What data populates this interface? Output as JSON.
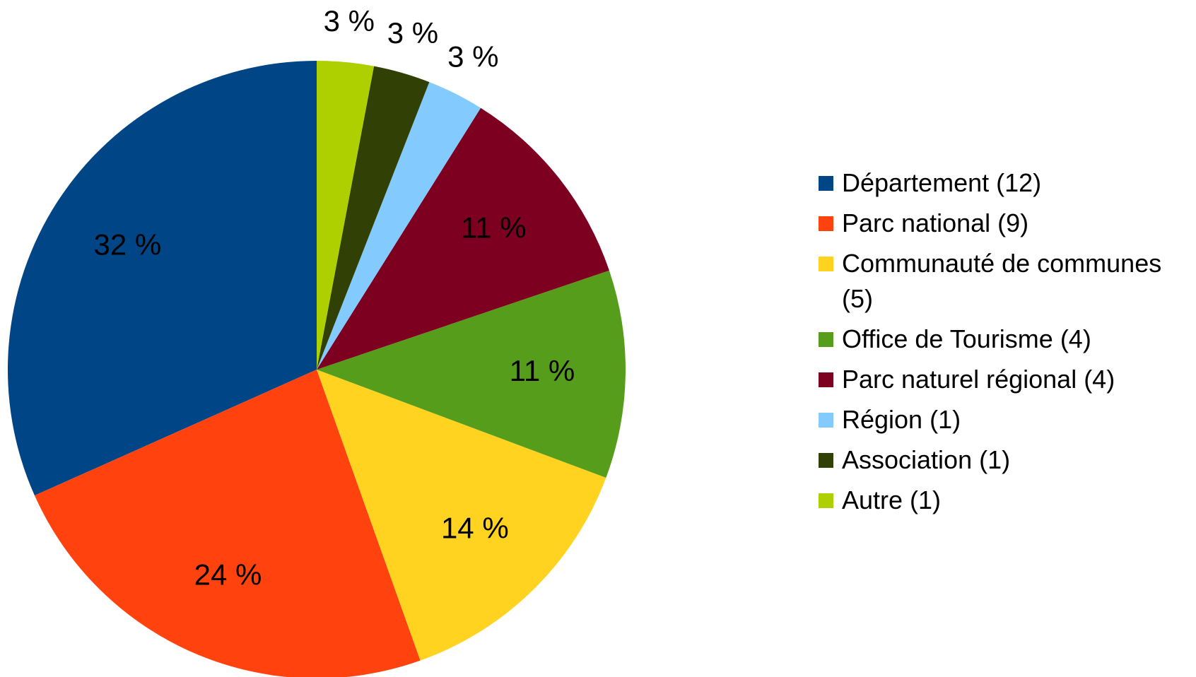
{
  "chart_data": {
    "type": "pie",
    "categories": [
      "Département (12)",
      "Parc national (9)",
      "Communauté de communes (5)",
      "Office de Tourisme (4)",
      "Parc naturel régional (4)",
      "Région (1)",
      "Association (1)",
      "Autre (1)"
    ],
    "values": [
      32,
      24,
      14,
      11,
      11,
      3,
      3,
      3
    ],
    "value_labels": [
      "32 %",
      "24 %",
      "14 %",
      "11 %",
      "11 %",
      "3 %",
      "3 %",
      "3 %"
    ],
    "colors": [
      "#004586",
      "#ff420e",
      "#ffd320",
      "#579d1c",
      "#7e0021",
      "#83caff",
      "#314004",
      "#aecf00"
    ],
    "legend": "right"
  }
}
